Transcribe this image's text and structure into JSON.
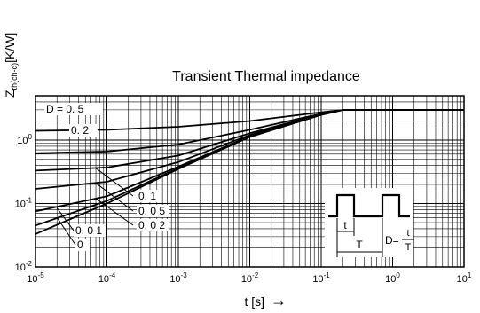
{
  "chart_data": {
    "type": "line",
    "title": "Transient Thermal impedance",
    "ylabel": "Z",
    "ylabel_sub": "th(ch-c)",
    "ylabel_unit": "[K/W]",
    "xlabel": "t [s]",
    "xlabel_arrow": "→",
    "xscale": "log",
    "yscale": "log",
    "xlim": [
      1e-05,
      10
    ],
    "ylim": [
      0.01,
      5
    ],
    "grid": true,
    "x_ticks": [
      {
        "base": "10",
        "exp": "-5"
      },
      {
        "base": "10",
        "exp": "-4"
      },
      {
        "base": "10",
        "exp": "-3"
      },
      {
        "base": "10",
        "exp": "-2"
      },
      {
        "base": "10",
        "exp": "-1"
      },
      {
        "base": "10",
        "exp": "0"
      },
      {
        "base": "10",
        "exp": "1"
      }
    ],
    "y_ticks": [
      {
        "base": "10",
        "exp": "-2"
      },
      {
        "base": "10",
        "exp": "-1"
      },
      {
        "base": "10",
        "exp": "0"
      }
    ],
    "series": [
      {
        "name": "D = 0. 5",
        "x": [
          1e-05,
          0.0001,
          0.001,
          0.01,
          0.1,
          0.2,
          1,
          10
        ],
        "y": [
          1.4,
          1.45,
          1.62,
          2.0,
          2.75,
          2.98,
          3.0,
          3.0
        ]
      },
      {
        "name": "0. 2",
        "x": [
          1e-05,
          0.0001,
          0.001,
          0.01,
          0.1,
          0.2,
          1,
          10
        ],
        "y": [
          0.62,
          0.66,
          0.85,
          1.45,
          2.6,
          2.98,
          3.0,
          3.0
        ]
      },
      {
        "name": "0. 1",
        "x": [
          1e-05,
          0.0001,
          0.001,
          0.01,
          0.1,
          0.2,
          1,
          10
        ],
        "y": [
          0.33,
          0.37,
          0.57,
          1.28,
          2.55,
          2.98,
          3.0,
          3.0
        ]
      },
      {
        "name": "0. 0 5",
        "x": [
          1e-05,
          0.0001,
          0.001,
          0.01,
          0.1,
          0.2,
          1,
          10
        ],
        "y": [
          0.17,
          0.22,
          0.45,
          1.2,
          2.52,
          2.98,
          3.0,
          3.0
        ]
      },
      {
        "name": "0. 0 2",
        "x": [
          1e-05,
          0.0001,
          0.001,
          0.01,
          0.1,
          0.2,
          1,
          10
        ],
        "y": [
          0.075,
          0.13,
          0.38,
          1.15,
          2.5,
          2.98,
          3.0,
          3.0
        ]
      },
      {
        "name": "0. 0 1",
        "x": [
          1e-05,
          0.0001,
          0.001,
          0.01,
          0.1,
          0.2,
          1,
          10
        ],
        "y": [
          0.045,
          0.11,
          0.36,
          1.13,
          2.5,
          2.98,
          3.0,
          3.0
        ]
      },
      {
        "name": "0",
        "x": [
          1e-05,
          0.0001,
          0.001,
          0.01,
          0.1,
          0.2,
          1,
          10
        ],
        "y": [
          0.033,
          0.1,
          0.35,
          1.12,
          2.5,
          2.98,
          3.0,
          3.0
        ]
      }
    ],
    "inset": {
      "label_t": "t",
      "label_T": "T",
      "formula_lhs": "D=",
      "formula_num": "t",
      "formula_den": "T"
    },
    "colors": {
      "line": "#000000",
      "grid": "#000000",
      "background": "#ffffff"
    }
  }
}
